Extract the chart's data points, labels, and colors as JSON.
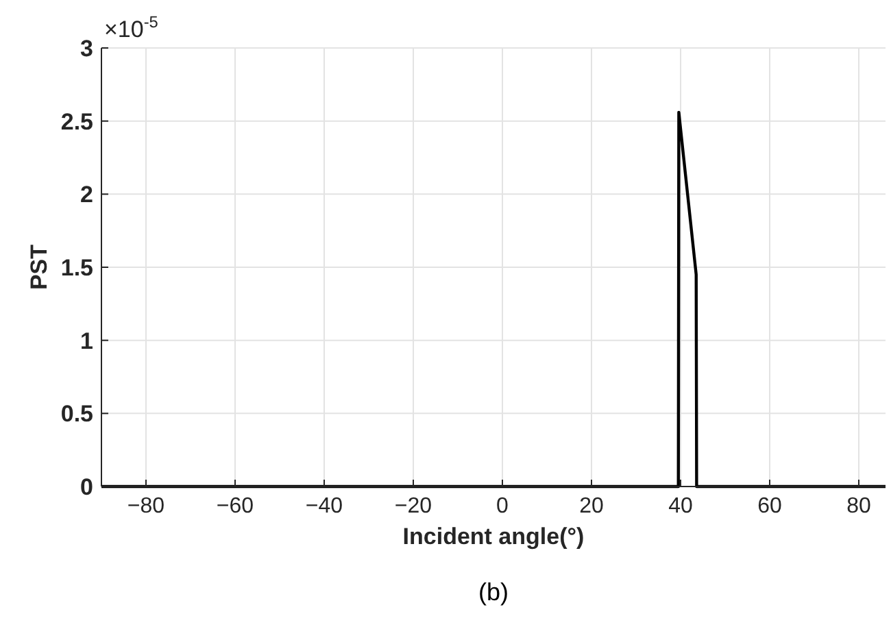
{
  "chart_data": {
    "type": "line",
    "xlabel": "Incident angle(°)",
    "ylabel": "PST",
    "x": [
      -90,
      39.5,
      39.6,
      43.5,
      43.6,
      86
    ],
    "series": [
      {
        "color": "#000000",
        "values": [
          0,
          0,
          2.56,
          1.45,
          0,
          0
        ]
      }
    ],
    "xlim": [
      -90,
      86
    ],
    "xticks": [
      {
        "value": -80,
        "label": "−80"
      },
      {
        "value": -60,
        "label": "−60"
      },
      {
        "value": -40,
        "label": "−40"
      },
      {
        "value": -20,
        "label": "−20"
      },
      0,
      20,
      40,
      60,
      80
    ],
    "ylim": [
      0,
      3
    ],
    "yticks": [
      0,
      0.5,
      1,
      1.5,
      2,
      2.5,
      3
    ],
    "grid": true,
    "annotations": [
      "×10$^{-5}$",
      "(b)"
    ]
  }
}
